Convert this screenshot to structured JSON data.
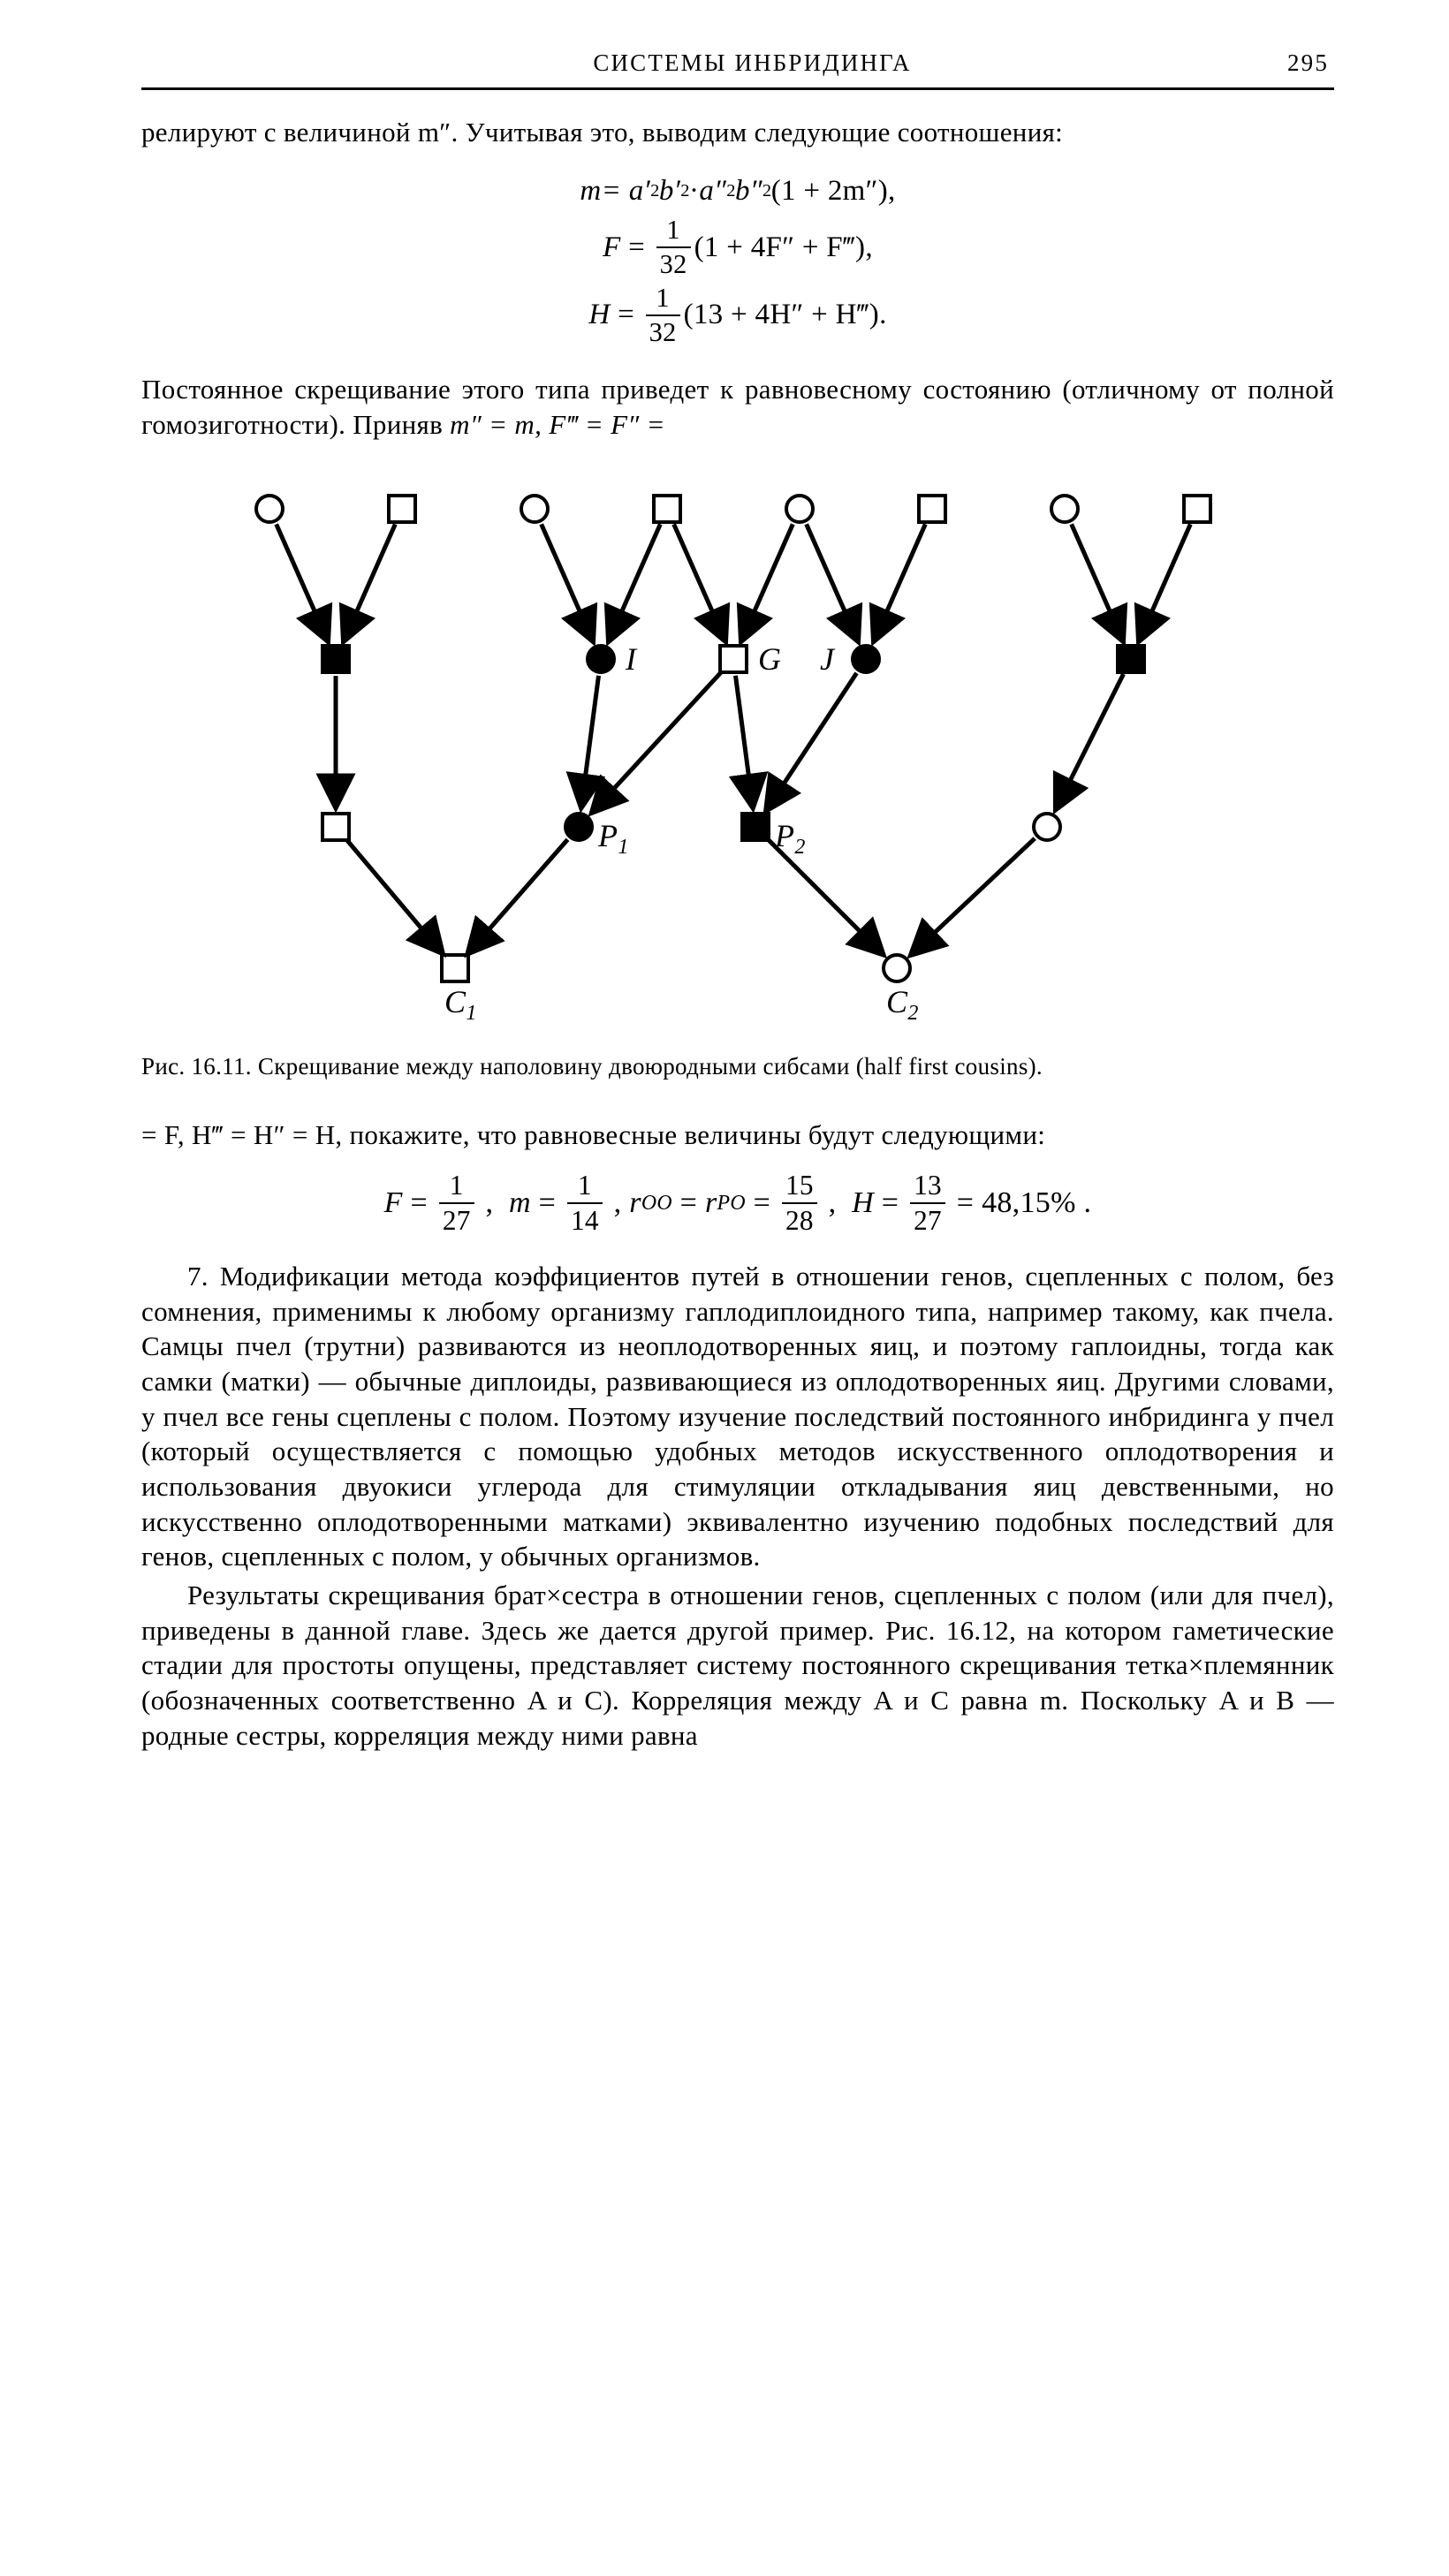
{
  "header": {
    "title": "СИСТЕМЫ ИНБРИДИНГА",
    "page_number": "295"
  },
  "lead_paragraph": "релируют с величиной m″. Учитывая это, выводим следующие соотно­шения:",
  "equations_block1": {
    "eq1": {
      "lhs": "m",
      "rhs_prefix": " = a′",
      "exp1": "2",
      "rhs2": "b′",
      "exp2": "2",
      "dot": "·",
      "rhs3": "a″",
      "exp3": "2",
      "rhs4": "b″",
      "exp4": "2",
      "tail": " (1 + 2m″),"
    },
    "eq2": {
      "lhs": "F",
      "frac_num": "1",
      "frac_den": "32",
      "tail": " (1 + 4F″ + F‴),"
    },
    "eq3": {
      "lhs": "H",
      "frac_num": "1",
      "frac_den": "32",
      "tail": " (13 + 4H″ + H‴)."
    }
  },
  "para2a": "Постоянное скрещивание этого типа приведет к равновесному состоя­нию (отличному от полной гомозиготности). Приняв ",
  "para2b": "m″ = m, F‴ = F″ =",
  "figure": {
    "caption_prefix": "Рис. 16.11. ",
    "caption_text": "Скрещивание между наполовину двоюродными сибсами (half first cousins).",
    "labels": {
      "I": "I",
      "G": "G",
      "J": "J",
      "P1": "P",
      "P1sub": "1",
      "P2": "P",
      "P2sub": "2",
      "C1": "C",
      "C1sub": "1",
      "C2": "C",
      "C2sub": "2"
    },
    "stroke": "#000000",
    "arrow_width": 5,
    "symbol_size": 30,
    "row_y": {
      "gen0": 50,
      "gen1": 220,
      "gen2": 410,
      "gen3": 570
    },
    "gen0_x": [
      90,
      240,
      390,
      540,
      690,
      840,
      990,
      1140
    ],
    "gen0_shape": [
      "circle-open",
      "square-open",
      "circle-open",
      "square-open",
      "circle-open",
      "square-open",
      "circle-open",
      "square-open"
    ],
    "gen1_x": [
      165,
      465,
      615,
      765,
      1065
    ],
    "gen1_shape": [
      "square-filled",
      "circle-filled",
      "square-open",
      "circle-filled",
      "square-filled"
    ],
    "gen2_x": [
      165,
      440,
      640,
      970
    ],
    "gen2_shape": [
      "square-open",
      "circle-filled",
      "square-filled",
      "circle-open"
    ],
    "gen3_x": [
      300,
      800
    ],
    "gen3_shape": [
      "square-open",
      "circle-open"
    ]
  },
  "para3": "= F, H‴ = H″ = H, покажите, что равновесные величины будут следу­ющими:",
  "equations_block2": {
    "F_num": "1",
    "F_den": "27",
    "m_num": "1",
    "m_den": "14",
    "r_lhs1": "r",
    "r_s1": "OO",
    "r_lhs2": "r",
    "r_s2": "PO",
    "r_num": "15",
    "r_den": "28",
    "H_num": "13",
    "H_den": "27",
    "H_pct": "48,15%"
  },
  "para4": "7. Модификации метода коэффициентов путей в отношении генов, сцепленных с полом, без сомнения, применимы к любому организму гаплодиплоидного типа, например такому, как пчела. Самцы пчел (трутни) развиваются из неоплодотворенных яиц, и поэтому гаплоид­ны, тогда как самки (матки) — обычные диплоиды, развивающиеся из оплодотворенных яиц. Другими словами, у пчел все гены сцеплены с полом. Поэтому изучение последствий постоянного инбридинга у пчел (который осуществляется с помощью удобных методов искусственного оплодотворения и использования двуокиси углерода для стимуляции от­кладывания яиц девственными, но искусственно оплодотворенными матками) эквивалентно изучению подобных последствий для генов, сцепленных с полом, у обычных организмов.",
  "para5": "Результаты скрещивания брат×сестра в отношении генов, сцеплен­ных с полом (или для пчел), приведены в данной главе. Здесь же да­ется другой пример. Рис. 16.12, на котором гаметические стадии для простоты опущены, представляет систему постоянного скрещивания тетка×племянник (обозначенных соответственно A и C). Корреляция между A и C равна m. Поскольку A и B — родные сестры, корреляция между ними равна"
}
